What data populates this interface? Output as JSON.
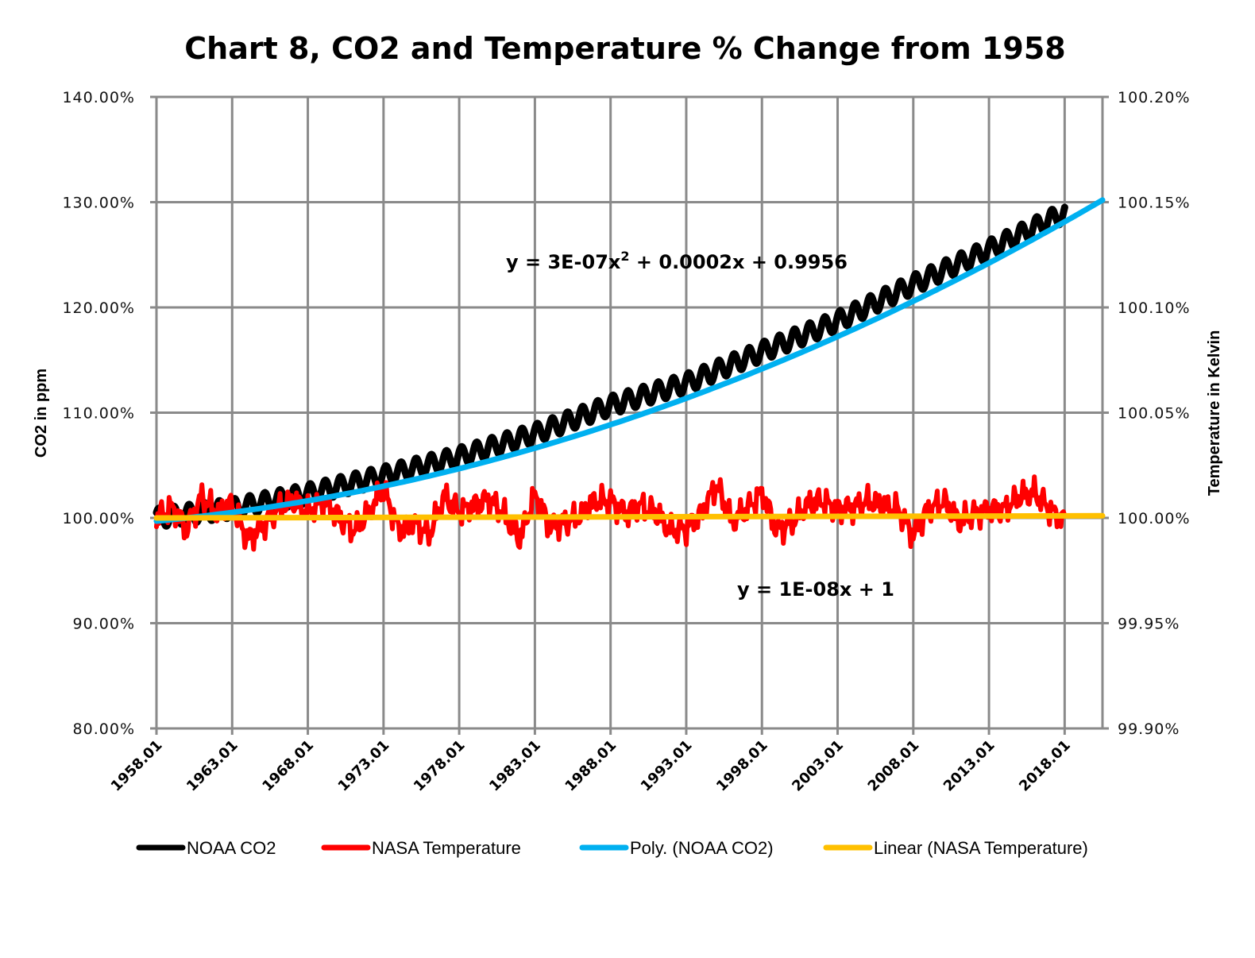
{
  "chart_data": {
    "type": "line",
    "title": "Chart 8, CO2 and Temperature % Change from 1958",
    "xlabel": "",
    "ylabel": "CO2 in ppm",
    "y2label": "Temperature in Kelvin",
    "x_range": [
      1958.0,
      2020.5
    ],
    "ylim": [
      0.8,
      1.4
    ],
    "y2lim": [
      0.999,
      1.002
    ],
    "yticks": [
      "140.00%",
      "130.00%",
      "120.00%",
      "110.00%",
      "100.00%",
      "90.00%",
      "80.00%"
    ],
    "yticks_values": [
      1.4,
      1.3,
      1.2,
      1.1,
      1.0,
      0.9,
      0.8
    ],
    "y2ticks": [
      "100.20%",
      "100.15%",
      "100.10%",
      "100.05%",
      "100.00%",
      "99.95%",
      "99.90%"
    ],
    "y2ticks_values": [
      1.002,
      1.0015,
      1.001,
      1.0005,
      1.0,
      0.9995,
      0.999
    ],
    "xticks": [
      "1958.01",
      "1963.01",
      "1968.01",
      "1973.01",
      "1978.01",
      "1983.01",
      "1988.01",
      "1993.01",
      "1998.01",
      "2003.01",
      "2008.01",
      "2013.01",
      "2018.01"
    ],
    "xticks_values": [
      1958,
      1963,
      1968,
      1973,
      1978,
      1983,
      1988,
      1993,
      1998,
      2003,
      2008,
      2013,
      2018
    ],
    "grid": true,
    "legend_position": "bottom",
    "series": [
      {
        "name": "NOAA CO2",
        "axis": "left",
        "color": "#000000",
        "seasonal_amplitude_pct": 0.9,
        "x": [
          1958,
          1963,
          1968,
          1973,
          1978,
          1983,
          1988,
          1993,
          1998,
          2003,
          2008,
          2013,
          2018
        ],
        "values": [
          1.0,
          1.009,
          1.023,
          1.04,
          1.058,
          1.08,
          1.107,
          1.128,
          1.158,
          1.187,
          1.222,
          1.255,
          1.29
        ]
      },
      {
        "name": "NASA Temperature",
        "axis": "right",
        "color": "#ff0000",
        "x": [
          1958,
          1959,
          1960,
          1961,
          1962,
          1963,
          1964,
          1965,
          1966,
          1967,
          1968,
          1969,
          1970,
          1971,
          1972,
          1973,
          1974,
          1975,
          1976,
          1977,
          1978,
          1979,
          1980,
          1981,
          1982,
          1983,
          1984,
          1985,
          1986,
          1987,
          1988,
          1989,
          1990,
          1991,
          1992,
          1993,
          1994,
          1995,
          1996,
          1997,
          1998,
          1999,
          2000,
          2001,
          2002,
          2003,
          2004,
          2005,
          2006,
          2007,
          2008,
          2009,
          2010,
          2011,
          2012,
          2013,
          2014,
          2015,
          2016,
          2017,
          2018
        ],
        "values": [
          1.0,
          1.00005,
          0.99995,
          1.0001,
          1.00002,
          1.00006,
          0.9999,
          0.99996,
          1.00004,
          1.00008,
          1.00003,
          1.00008,
          1.00001,
          0.99994,
          1.00002,
          1.00014,
          0.99994,
          0.99998,
          0.99992,
          1.0001,
          1.00003,
          1.00006,
          1.00009,
          1.00001,
          0.9999,
          1.00011,
          0.99996,
          0.99998,
          1.00001,
          1.00008,
          1.00008,
          1.00002,
          1.00006,
          1.00002,
          0.99994,
          0.99995,
          1.00002,
          1.00016,
          0.99998,
          1.00004,
          1.00012,
          0.99994,
          0.99998,
          1.00006,
          1.00008,
          1.00004,
          1.00005,
          1.00008,
          1.00006,
          1.00004,
          0.99992,
          1.00004,
          1.00008,
          0.99998,
          1.00002,
          1.00004,
          1.00004,
          1.0001,
          1.00012,
          1.00004,
          0.99998
        ]
      },
      {
        "name": "Poly. (NOAA CO2)",
        "axis": "left",
        "color": "#00b0f0",
        "trendline": "polynomial",
        "equation": "y = 3E-07x² + 0.0002x + 0.9956",
        "x": [
          1958,
          1963,
          1968,
          1973,
          1978,
          1983,
          1988,
          1993,
          1998,
          2003,
          2008,
          2013,
          2018,
          2020.5
        ],
        "values": [
          0.997,
          1.004,
          1.012,
          1.022,
          1.035,
          1.05,
          1.067,
          1.087,
          1.11,
          1.135,
          1.163,
          1.193,
          1.286,
          1.302
        ]
      },
      {
        "name": "Linear (NASA Temperature)",
        "axis": "right",
        "color": "#ffc000",
        "trendline": "linear",
        "equation": "y = 1E-08x + 1",
        "x": [
          1958,
          2020.5
        ],
        "values": [
          1.0,
          1.00001
        ]
      }
    ],
    "annotations": [
      {
        "text_main": "y = 3E-07x",
        "sup": "2",
        "text_tail": " + 0.0002x  + 0.9956",
        "near_series": "Poly. (NOAA CO2)"
      },
      {
        "text_main": "y = 1E-08x + 1",
        "near_series": "Linear (NASA Temperature)"
      }
    ]
  }
}
